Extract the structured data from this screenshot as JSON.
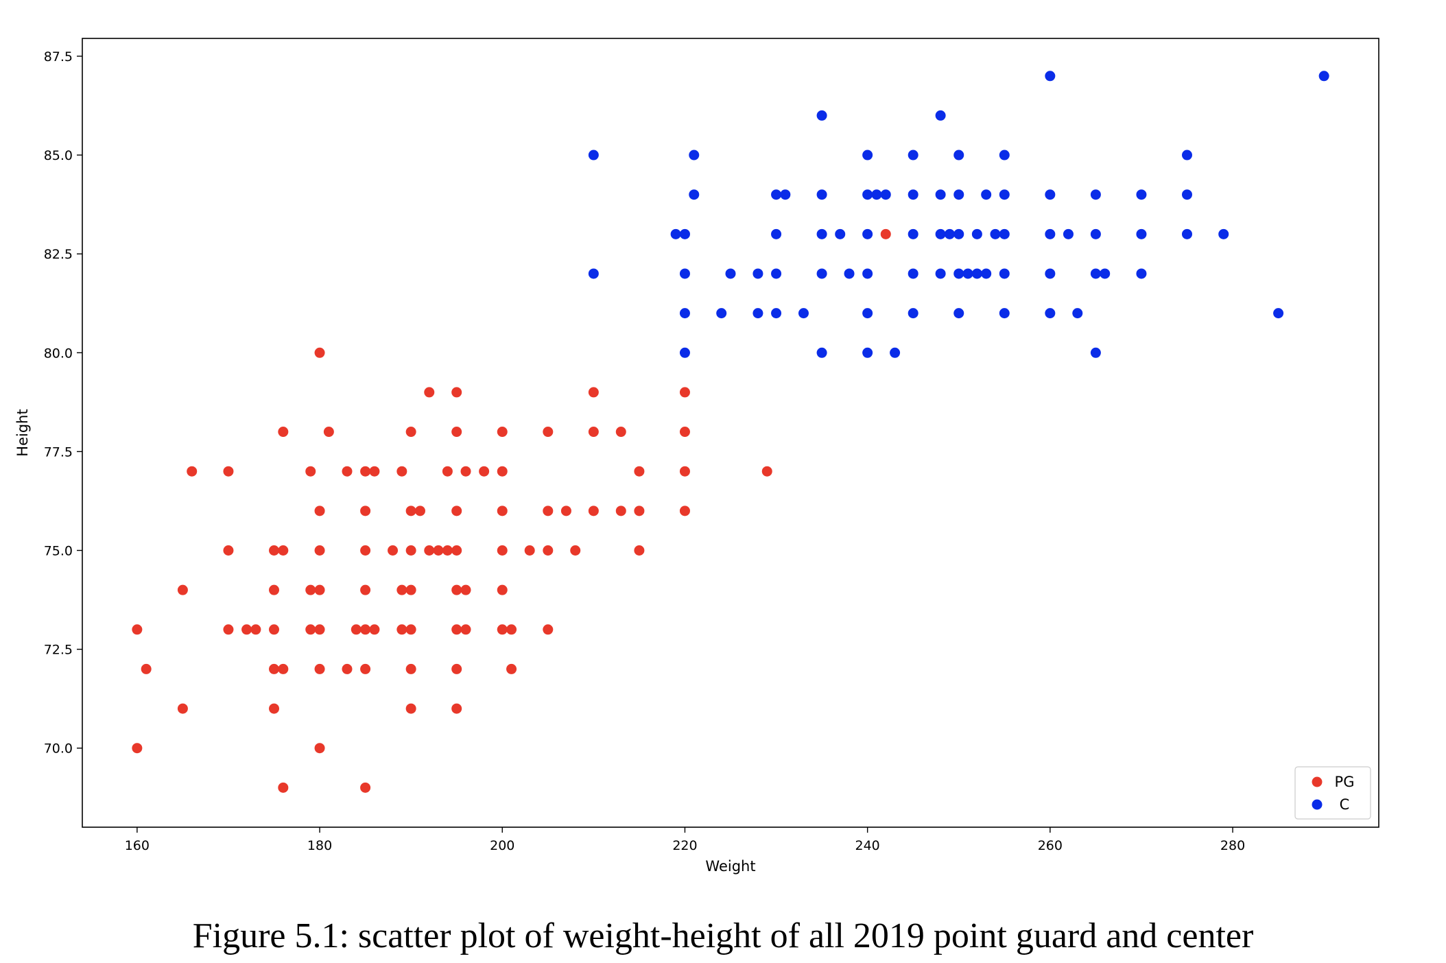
{
  "caption": "Figure 5.1: scatter plot of weight-height of all 2019 point guard and center",
  "chart_data": {
    "type": "scatter",
    "title": "",
    "xlabel": "Weight",
    "ylabel": "Height",
    "xlim": [
      154,
      296
    ],
    "ylim": [
      68.0,
      87.95
    ],
    "xticks": [
      160,
      180,
      200,
      220,
      240,
      260,
      280
    ],
    "yticks": [
      70.0,
      72.5,
      75.0,
      77.5,
      80.0,
      82.5,
      85.0,
      87.5
    ],
    "grid": false,
    "legend_position": "lower-right",
    "series": [
      {
        "name": "PG",
        "color": "#e8382a",
        "points": [
          [
            160,
            73
          ],
          [
            160,
            70
          ],
          [
            161,
            72
          ],
          [
            165,
            74
          ],
          [
            165,
            71
          ],
          [
            166,
            77
          ],
          [
            170,
            77
          ],
          [
            170,
            75
          ],
          [
            170,
            73
          ],
          [
            172,
            73
          ],
          [
            173,
            73
          ],
          [
            175,
            75
          ],
          [
            175,
            74
          ],
          [
            175,
            73
          ],
          [
            175,
            72
          ],
          [
            175,
            71
          ],
          [
            176,
            78
          ],
          [
            176,
            75
          ],
          [
            176,
            72
          ],
          [
            176,
            69
          ],
          [
            179,
            77
          ],
          [
            179,
            74
          ],
          [
            179,
            73
          ],
          [
            180,
            80
          ],
          [
            180,
            76
          ],
          [
            180,
            75
          ],
          [
            180,
            74
          ],
          [
            180,
            73
          ],
          [
            180,
            72
          ],
          [
            180,
            70
          ],
          [
            181,
            78
          ],
          [
            183,
            77
          ],
          [
            183,
            72
          ],
          [
            184,
            73
          ],
          [
            185,
            77
          ],
          [
            185,
            76
          ],
          [
            185,
            75
          ],
          [
            185,
            74
          ],
          [
            185,
            73
          ],
          [
            185,
            72
          ],
          [
            185,
            69
          ],
          [
            186,
            77
          ],
          [
            186,
            73
          ],
          [
            188,
            75
          ],
          [
            189,
            77
          ],
          [
            189,
            74
          ],
          [
            189,
            73
          ],
          [
            190,
            78
          ],
          [
            190,
            76
          ],
          [
            190,
            75
          ],
          [
            190,
            74
          ],
          [
            190,
            73
          ],
          [
            190,
            72
          ],
          [
            190,
            71
          ],
          [
            191,
            76
          ],
          [
            192,
            79
          ],
          [
            192,
            75
          ],
          [
            193,
            75
          ],
          [
            194,
            77
          ],
          [
            194,
            75
          ],
          [
            195,
            79
          ],
          [
            195,
            78
          ],
          [
            195,
            76
          ],
          [
            195,
            75
          ],
          [
            195,
            74
          ],
          [
            195,
            73
          ],
          [
            195,
            72
          ],
          [
            195,
            71
          ],
          [
            196,
            77
          ],
          [
            196,
            74
          ],
          [
            196,
            73
          ],
          [
            198,
            77
          ],
          [
            200,
            78
          ],
          [
            200,
            77
          ],
          [
            200,
            76
          ],
          [
            200,
            75
          ],
          [
            200,
            74
          ],
          [
            200,
            73
          ],
          [
            201,
            73
          ],
          [
            201,
            72
          ],
          [
            203,
            75
          ],
          [
            205,
            78
          ],
          [
            205,
            76
          ],
          [
            205,
            75
          ],
          [
            205,
            73
          ],
          [
            207,
            76
          ],
          [
            208,
            75
          ],
          [
            210,
            79
          ],
          [
            210,
            78
          ],
          [
            210,
            76
          ],
          [
            213,
            78
          ],
          [
            213,
            76
          ],
          [
            215,
            77
          ],
          [
            215,
            76
          ],
          [
            215,
            75
          ],
          [
            220,
            79
          ],
          [
            220,
            78
          ],
          [
            220,
            77
          ],
          [
            220,
            76
          ],
          [
            229,
            77
          ],
          [
            242,
            83
          ]
        ]
      },
      {
        "name": "C",
        "color": "#0a2ce8",
        "points": [
          [
            210,
            85
          ],
          [
            210,
            82
          ],
          [
            219,
            83
          ],
          [
            220,
            83
          ],
          [
            220,
            82
          ],
          [
            220,
            81
          ],
          [
            220,
            80
          ],
          [
            221,
            85
          ],
          [
            221,
            84
          ],
          [
            224,
            81
          ],
          [
            225,
            82
          ],
          [
            228,
            82
          ],
          [
            228,
            81
          ],
          [
            230,
            84
          ],
          [
            230,
            83
          ],
          [
            230,
            82
          ],
          [
            230,
            81
          ],
          [
            231,
            84
          ],
          [
            233,
            81
          ],
          [
            235,
            86
          ],
          [
            235,
            84
          ],
          [
            235,
            83
          ],
          [
            235,
            82
          ],
          [
            235,
            80
          ],
          [
            237,
            83
          ],
          [
            238,
            82
          ],
          [
            240,
            85
          ],
          [
            240,
            84
          ],
          [
            240,
            83
          ],
          [
            240,
            82
          ],
          [
            240,
            81
          ],
          [
            240,
            80
          ],
          [
            241,
            84
          ],
          [
            242,
            84
          ],
          [
            243,
            80
          ],
          [
            245,
            85
          ],
          [
            245,
            84
          ],
          [
            245,
            83
          ],
          [
            245,
            82
          ],
          [
            245,
            81
          ],
          [
            248,
            86
          ],
          [
            248,
            84
          ],
          [
            248,
            83
          ],
          [
            248,
            82
          ],
          [
            249,
            83
          ],
          [
            250,
            85
          ],
          [
            250,
            84
          ],
          [
            250,
            83
          ],
          [
            250,
            82
          ],
          [
            250,
            81
          ],
          [
            251,
            82
          ],
          [
            252,
            83
          ],
          [
            252,
            82
          ],
          [
            253,
            84
          ],
          [
            253,
            82
          ],
          [
            254,
            83
          ],
          [
            255,
            85
          ],
          [
            255,
            84
          ],
          [
            255,
            83
          ],
          [
            255,
            82
          ],
          [
            255,
            81
          ],
          [
            260,
            87
          ],
          [
            260,
            84
          ],
          [
            260,
            83
          ],
          [
            260,
            82
          ],
          [
            260,
            81
          ],
          [
            262,
            83
          ],
          [
            263,
            81
          ],
          [
            265,
            84
          ],
          [
            265,
            83
          ],
          [
            265,
            82
          ],
          [
            265,
            80
          ],
          [
            266,
            82
          ],
          [
            270,
            84
          ],
          [
            270,
            83
          ],
          [
            270,
            82
          ],
          [
            275,
            85
          ],
          [
            275,
            84
          ],
          [
            275,
            83
          ],
          [
            279,
            83
          ],
          [
            285,
            81
          ],
          [
            290,
            87
          ]
        ]
      }
    ]
  }
}
